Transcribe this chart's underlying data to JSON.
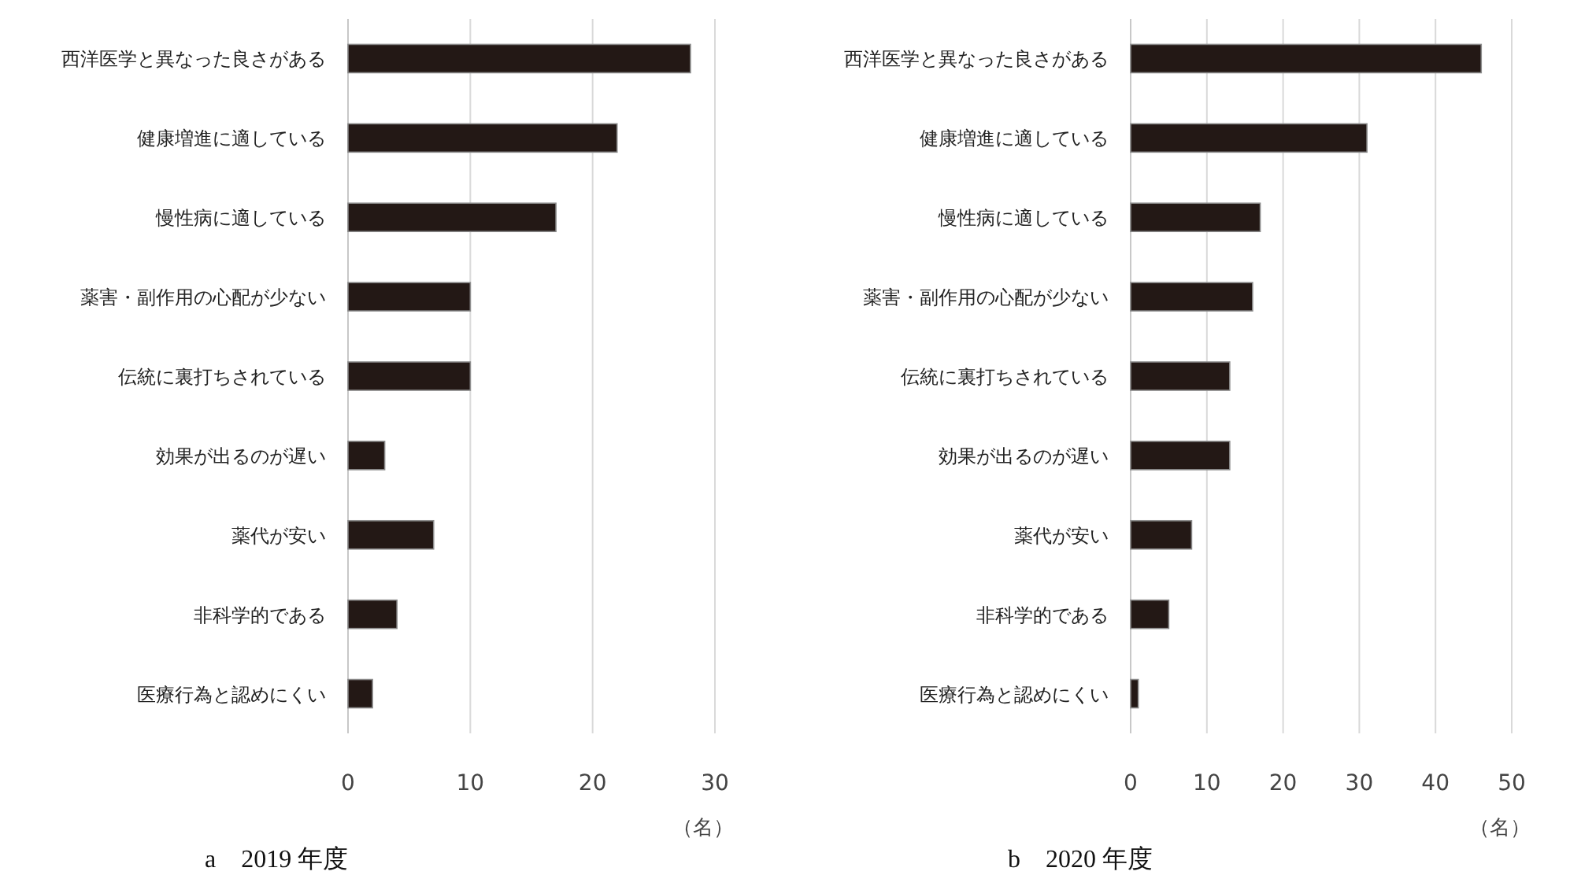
{
  "chart_data": [
    {
      "type": "bar",
      "orientation": "horizontal",
      "title": "a　2019 年度",
      "xlabel": "（名）",
      "categories": [
        "西洋医学と異なった良さがある",
        "健康増進に適している",
        "慢性病に適している",
        "薬害・副作用の心配が少ない",
        "伝統に裏打ちされている",
        "効果が出るのが遅い",
        "薬代が安い",
        "非科学的である",
        "医療行為と認めにくい"
      ],
      "values": [
        28,
        22,
        17,
        10,
        10,
        3,
        7,
        4,
        2
      ],
      "color": "#231815",
      "xlim": [
        0,
        30
      ],
      "xticks": [
        0,
        10,
        20,
        30
      ],
      "grid": "x"
    },
    {
      "type": "bar",
      "orientation": "horizontal",
      "title": "b　2020 年度",
      "xlabel": "（名）",
      "categories": [
        "西洋医学と異なった良さがある",
        "健康増進に適している",
        "慢性病に適している",
        "薬害・副作用の心配が少ない",
        "伝統に裏打ちされている",
        "効果が出るのが遅い",
        "薬代が安い",
        "非科学的である",
        "医療行為と認めにくい"
      ],
      "values": [
        46,
        31,
        17,
        16,
        13,
        13,
        8,
        5,
        1
      ],
      "color": "#231815",
      "xlim": [
        0,
        50
      ],
      "xticks": [
        0,
        10,
        20,
        30,
        40,
        50
      ],
      "grid": "x"
    }
  ]
}
